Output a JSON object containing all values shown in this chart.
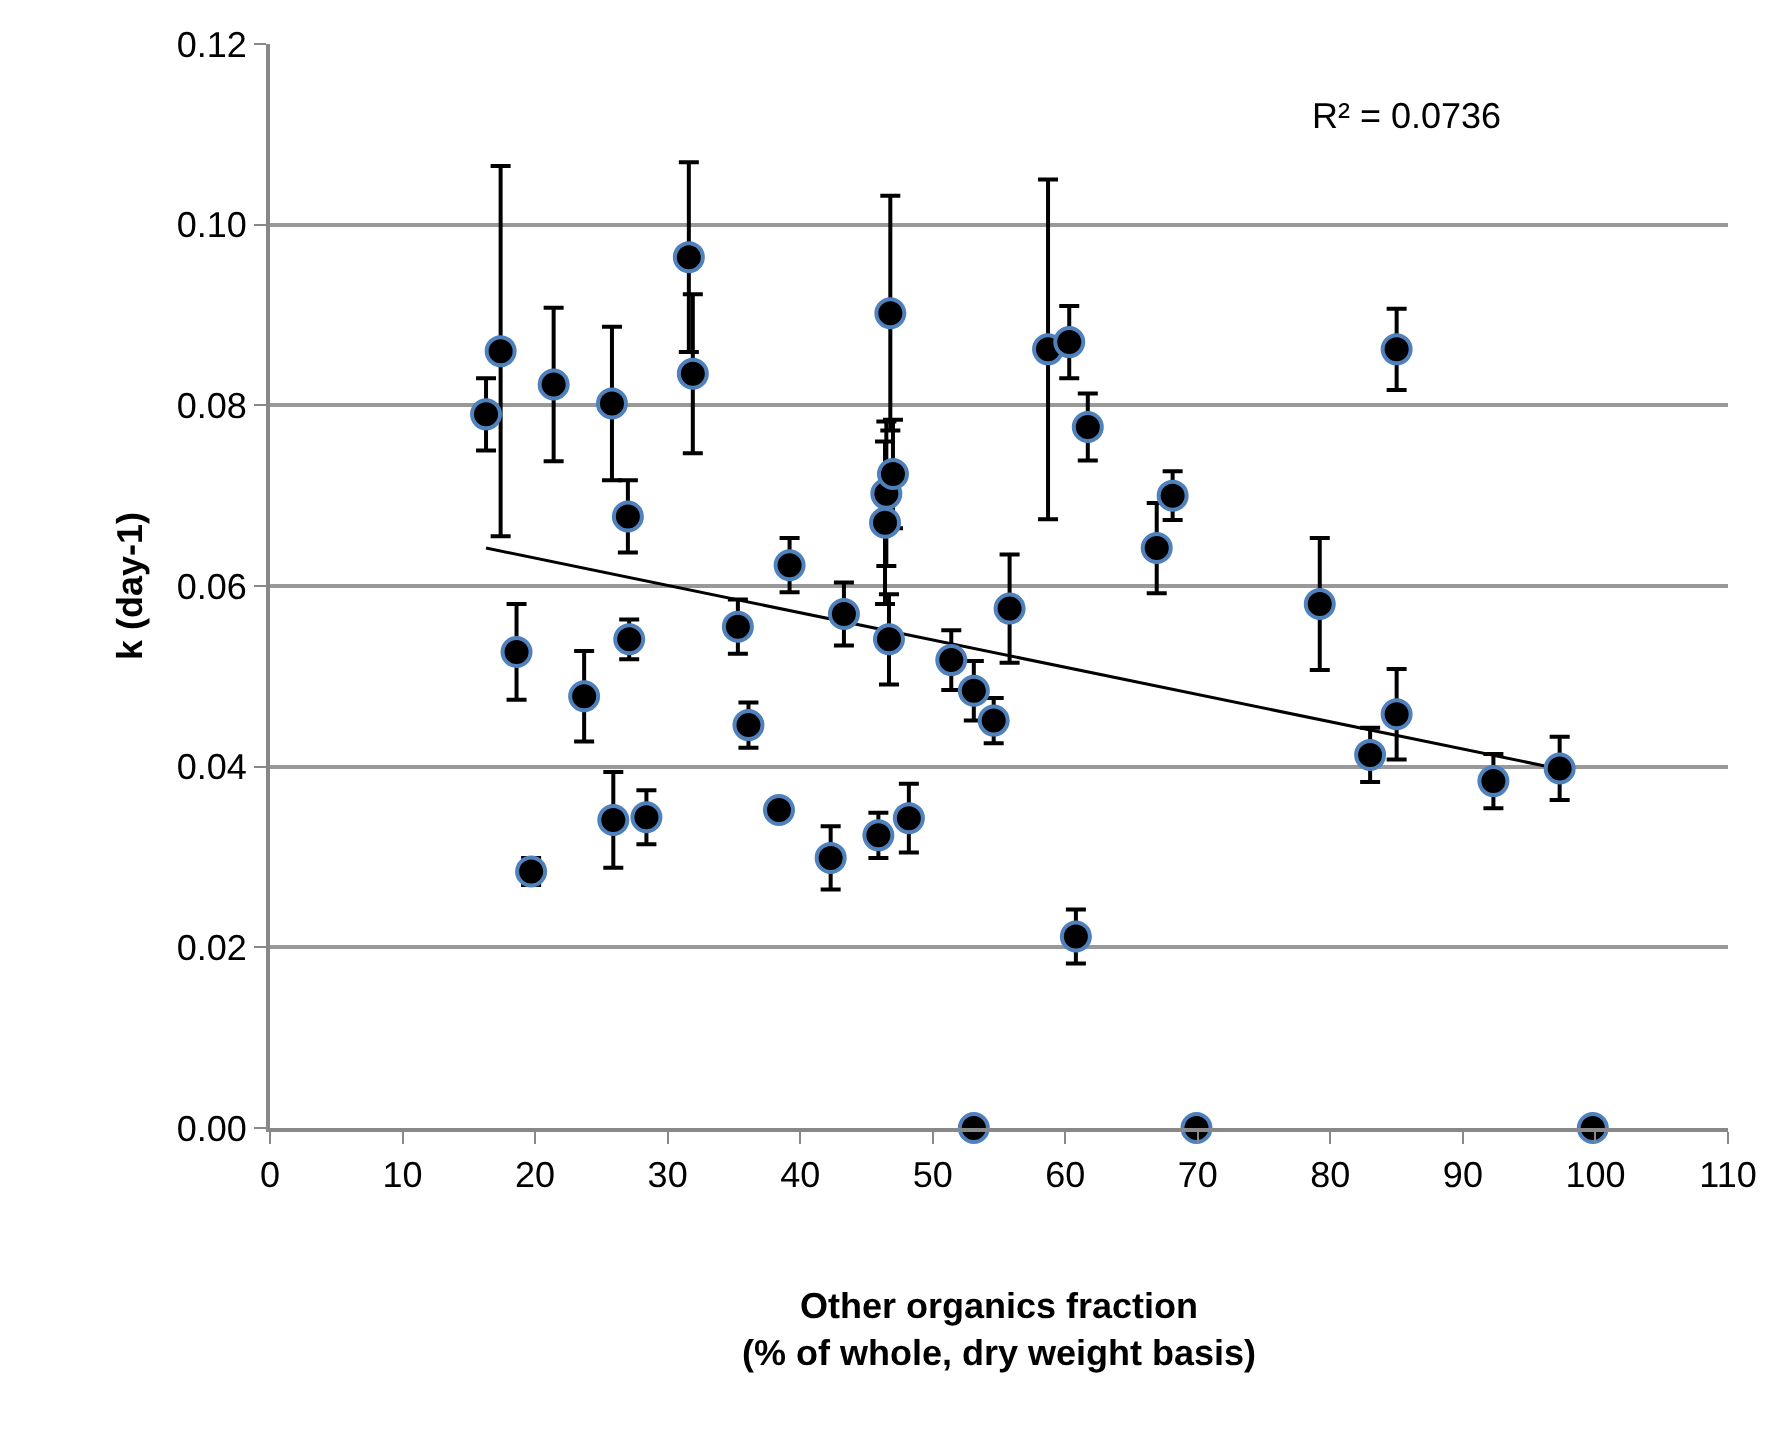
{
  "chart_data": {
    "type": "scatter",
    "xlabel": "Other organics fraction\n(% of whole, dry weight basis)",
    "ylabel": "k (day-1)",
    "annotations": [
      "R² = 0.0736"
    ],
    "xlim": [
      0,
      110
    ],
    "xticks": [
      0,
      10,
      20,
      30,
      40,
      50,
      60,
      70,
      80,
      90,
      100,
      110
    ],
    "ylim": [
      0,
      0.12
    ],
    "yticks": [
      {
        "value": 0,
        "label": "0.00"
      },
      {
        "value": 0.02,
        "label": "0.02"
      },
      {
        "value": 0.04,
        "label": "0.04"
      },
      {
        "value": 0.06,
        "label": "0.06"
      },
      {
        "value": 0.08,
        "label": "0.08"
      },
      {
        "value": 0.1,
        "label": "0.10"
      },
      {
        "value": 0.12,
        "label": "0.12"
      }
    ],
    "grid": "y",
    "legend": false,
    "series": [
      {
        "marker": "circle",
        "color": "#000000",
        "x": [
          16.3,
          17.4,
          18.6,
          19.7,
          21.4,
          23.7,
          25.8,
          25.9,
          27.0,
          27.1,
          28.4,
          31.6,
          31.9,
          35.3,
          36.1,
          38.4,
          39.2,
          42.3,
          43.3,
          45.9,
          46.4,
          46.5,
          46.7,
          46.8,
          47.0,
          48.2,
          51.4,
          53.1,
          53.1,
          54.6,
          55.8,
          58.7,
          60.3,
          60.8,
          61.7,
          66.9,
          68.1,
          69.9,
          79.2,
          83.0,
          85.0,
          85.0,
          92.3,
          97.3,
          99.8
        ],
        "values": [
          0.079,
          0.086,
          0.0527,
          0.0284,
          0.0823,
          0.0478,
          0.0802,
          0.0341,
          0.0677,
          0.0541,
          0.0344,
          0.0964,
          0.0835,
          0.0555,
          0.0446,
          0.0352,
          0.0623,
          0.0299,
          0.0569,
          0.0324,
          0.067,
          0.0702,
          0.0541,
          0.0902,
          0.0724,
          0.0343,
          0.0518,
          0.0484,
          0,
          0.0451,
          0.0575,
          0.0862,
          0.087,
          0.0212,
          0.0776,
          0.0642,
          0.07,
          0,
          0.058,
          0.0413,
          0.0862,
          0.0458,
          0.0384,
          0.0398,
          0
        ],
        "errors": [
          0.004,
          0.0205,
          0.0053,
          0.0015,
          0.0085,
          0.005,
          0.0085,
          0.0053,
          0.004,
          0.0022,
          0.003,
          0.0105,
          0.0088,
          0.003,
          0.0025,
          null,
          0.003,
          0.0035,
          0.0035,
          0.0025,
          0.009,
          0.008,
          0.005,
          0.013,
          0.006,
          0.0038,
          0.0033,
          0.0033,
          null,
          0.0025,
          0.006,
          0.0188,
          0.004,
          0.003,
          0.0037,
          0.005,
          0.0027,
          null,
          0.0073,
          0.003,
          0.0045,
          0.005,
          0.003,
          0.0035,
          null
        ]
      },
      {
        "type": "line",
        "color": "#000000",
        "x": [
          16.3,
          98.1
        ],
        "values": [
          0.0642,
          0.0395
        ]
      }
    ]
  }
}
